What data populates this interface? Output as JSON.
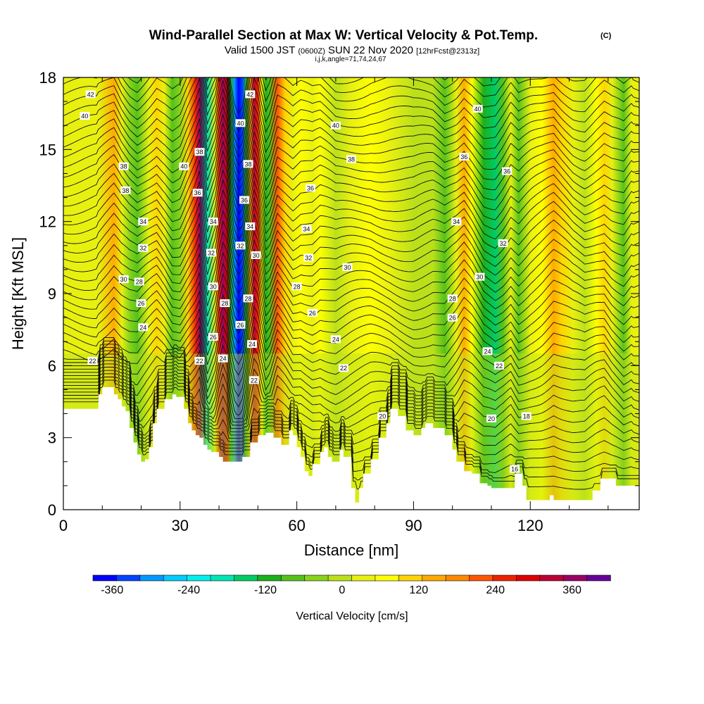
{
  "title": {
    "main": "Wind-Parallel Section at Max W: Vertical Velocity & Pot.Temp.",
    "copyright": "(C)",
    "valid_a": "Valid 1500 JST",
    "valid_z": "(0600Z)",
    "valid_b": "SUN 22 Nov 2020",
    "fcst": "[12hrFcst@2313z]",
    "ijk": "i,j,k,angle=71,74,24,67"
  },
  "chart_data": {
    "type": "heatmap",
    "xlabel": "Distance [nm]",
    "ylabel": "Height [Kft MSL]",
    "xlim": [
      0,
      148
    ],
    "ylim": [
      0,
      18
    ],
    "x_ticks": [
      0,
      30,
      60,
      90,
      120
    ],
    "y_ticks": [
      0,
      3,
      6,
      9,
      12,
      15,
      18
    ],
    "terrain_top_kft": [
      [
        0,
        4.2
      ],
      [
        7,
        4.2
      ],
      [
        9,
        4.8
      ],
      [
        10,
        5.1
      ],
      [
        12,
        5.1
      ],
      [
        13,
        4.8
      ],
      [
        14,
        4.6
      ],
      [
        15,
        4.3
      ],
      [
        16,
        4.1
      ],
      [
        17,
        3.4
      ],
      [
        18,
        2.8
      ],
      [
        19,
        2.3
      ],
      [
        20,
        2.0
      ],
      [
        21,
        2.1
      ],
      [
        22,
        2.6
      ],
      [
        23,
        3.6
      ],
      [
        24,
        4.2
      ],
      [
        26,
        4.6
      ],
      [
        28,
        4.8
      ],
      [
        29,
        4.7
      ],
      [
        31,
        4.2
      ],
      [
        32,
        3.6
      ],
      [
        33,
        3.3
      ],
      [
        34,
        3.1
      ],
      [
        35,
        3.0
      ],
      [
        36,
        2.7
      ],
      [
        37,
        2.5
      ],
      [
        38,
        2.4
      ],
      [
        40,
        2.2
      ],
      [
        41,
        2.0
      ],
      [
        45,
        2.0
      ],
      [
        46,
        2.2
      ],
      [
        48,
        2.8
      ],
      [
        50,
        3.1
      ],
      [
        52,
        3.2
      ],
      [
        54,
        3.0
      ],
      [
        56,
        2.7
      ],
      [
        58,
        3.3
      ],
      [
        59,
        3.1
      ],
      [
        60,
        2.6
      ],
      [
        61,
        2.2
      ],
      [
        62,
        1.6
      ],
      [
        63,
        1.4
      ],
      [
        64,
        1.9
      ],
      [
        66,
        2.4
      ],
      [
        67,
        2.6
      ],
      [
        68,
        2.2
      ],
      [
        69,
        2.0
      ],
      [
        71,
        2.5
      ],
      [
        72,
        2.2
      ],
      [
        74,
        0.9
      ],
      [
        75,
        0.3
      ],
      [
        76,
        0.9
      ],
      [
        77,
        1.5
      ],
      [
        79,
        2.1
      ],
      [
        81,
        3.0
      ],
      [
        83,
        3.6
      ],
      [
        84,
        4.2
      ],
      [
        86,
        3.9
      ],
      [
        88,
        3.3
      ],
      [
        90,
        3.1
      ],
      [
        92,
        3.4
      ],
      [
        93,
        3.6
      ],
      [
        95,
        3.4
      ],
      [
        98,
        3.1
      ],
      [
        100,
        2.5
      ],
      [
        101,
        2.0
      ],
      [
        103,
        1.6
      ],
      [
        105,
        1.5
      ],
      [
        107,
        1.1
      ],
      [
        109,
        1.0
      ],
      [
        110,
        0.9
      ],
      [
        113,
        0.9
      ],
      [
        116,
        1.5
      ],
      [
        118,
        1.0
      ],
      [
        119,
        0.4
      ],
      [
        124,
        0.4
      ],
      [
        125,
        0.6
      ],
      [
        126,
        0.4
      ],
      [
        133,
        0.4
      ],
      [
        136,
        0.8
      ],
      [
        138,
        1.3
      ],
      [
        141,
        1.3
      ],
      [
        142,
        1.0
      ],
      [
        148,
        1.0
      ]
    ],
    "velocity_bands_x_nm_cm_s": [
      [
        9,
        40
      ],
      [
        13,
        160
      ],
      [
        15,
        40
      ],
      [
        17,
        -40
      ],
      [
        19,
        -80
      ],
      [
        22,
        40
      ],
      [
        24,
        120
      ],
      [
        26,
        40
      ],
      [
        28,
        -60
      ],
      [
        30,
        -40
      ],
      [
        32,
        120
      ],
      [
        34,
        260
      ],
      [
        35,
        360
      ],
      [
        37,
        -180
      ],
      [
        39,
        40
      ],
      [
        40,
        240
      ],
      [
        41,
        380
      ],
      [
        42,
        280
      ],
      [
        43,
        -100
      ],
      [
        44,
        -300
      ],
      [
        45,
        -380
      ],
      [
        46,
        -320
      ],
      [
        47,
        -120
      ],
      [
        48,
        160
      ],
      [
        49,
        340
      ],
      [
        50,
        260
      ],
      [
        51,
        60
      ],
      [
        52,
        -120
      ],
      [
        53,
        -60
      ],
      [
        55,
        200
      ],
      [
        57,
        120
      ],
      [
        59,
        20
      ],
      [
        61,
        60
      ],
      [
        64,
        20
      ],
      [
        66,
        60
      ],
      [
        70,
        -20
      ],
      [
        74,
        20
      ],
      [
        79,
        60
      ],
      [
        84,
        40
      ],
      [
        90,
        -20
      ],
      [
        95,
        0
      ],
      [
        98,
        -60
      ],
      [
        101,
        40
      ],
      [
        103,
        140
      ],
      [
        105,
        60
      ],
      [
        108,
        -100
      ],
      [
        111,
        -140
      ],
      [
        113,
        -60
      ],
      [
        115,
        40
      ],
      [
        117,
        -60
      ],
      [
        120,
        20
      ],
      [
        123,
        80
      ],
      [
        126,
        160
      ],
      [
        128,
        100
      ],
      [
        131,
        20
      ],
      [
        134,
        -20
      ],
      [
        137,
        60
      ],
      [
        139,
        100
      ],
      [
        141,
        20
      ],
      [
        144,
        -60
      ],
      [
        146,
        20
      ]
    ],
    "theta_contour_labels": [
      {
        "value": "42",
        "x": 7,
        "y": 17.3
      },
      {
        "value": "40",
        "x": 5.5,
        "y": 16.4
      },
      {
        "value": "38",
        "x": 15.5,
        "y": 14.3
      },
      {
        "value": "38",
        "x": 16,
        "y": 13.3
      },
      {
        "value": "34",
        "x": 20.5,
        "y": 12.0
      },
      {
        "value": "32",
        "x": 20.5,
        "y": 10.9
      },
      {
        "value": "30",
        "x": 15.5,
        "y": 9.6
      },
      {
        "value": "28",
        "x": 19.5,
        "y": 9.5
      },
      {
        "value": "26",
        "x": 20,
        "y": 8.6
      },
      {
        "value": "24",
        "x": 20.5,
        "y": 7.6
      },
      {
        "value": "22",
        "x": 7.5,
        "y": 6.2
      },
      {
        "value": "40",
        "x": 31,
        "y": 14.3
      },
      {
        "value": "38",
        "x": 35,
        "y": 14.9
      },
      {
        "value": "36",
        "x": 34.5,
        "y": 13.2
      },
      {
        "value": "34",
        "x": 38.5,
        "y": 12.0
      },
      {
        "value": "32",
        "x": 38,
        "y": 10.7
      },
      {
        "value": "30",
        "x": 38.5,
        "y": 9.3
      },
      {
        "value": "28",
        "x": 41.5,
        "y": 8.6
      },
      {
        "value": "26",
        "x": 38.5,
        "y": 7.2
      },
      {
        "value": "22",
        "x": 35,
        "y": 6.2
      },
      {
        "value": "24",
        "x": 41,
        "y": 6.3
      },
      {
        "value": "42",
        "x": 48,
        "y": 17.3
      },
      {
        "value": "40",
        "x": 45.5,
        "y": 16.1
      },
      {
        "value": "38",
        "x": 47.5,
        "y": 14.4
      },
      {
        "value": "36",
        "x": 46.5,
        "y": 12.9
      },
      {
        "value": "34",
        "x": 48,
        "y": 11.8
      },
      {
        "value": "32",
        "x": 45.5,
        "y": 11.0
      },
      {
        "value": "30",
        "x": 49.5,
        "y": 10.6
      },
      {
        "value": "28",
        "x": 47.5,
        "y": 8.8
      },
      {
        "value": "26",
        "x": 45.5,
        "y": 7.7
      },
      {
        "value": "24",
        "x": 48.5,
        "y": 6.9
      },
      {
        "value": "22",
        "x": 49,
        "y": 5.4
      },
      {
        "value": "36",
        "x": 63.5,
        "y": 13.4
      },
      {
        "value": "34",
        "x": 62.5,
        "y": 11.7
      },
      {
        "value": "32",
        "x": 63,
        "y": 10.5
      },
      {
        "value": "30",
        "x": 73,
        "y": 10.1
      },
      {
        "value": "28",
        "x": 60,
        "y": 9.3
      },
      {
        "value": "26",
        "x": 64,
        "y": 8.2
      },
      {
        "value": "24",
        "x": 70,
        "y": 7.1
      },
      {
        "value": "22",
        "x": 72,
        "y": 5.9
      },
      {
        "value": "20",
        "x": 82,
        "y": 3.9
      },
      {
        "value": "40",
        "x": 70,
        "y": 16.0
      },
      {
        "value": "38",
        "x": 74,
        "y": 14.6
      },
      {
        "value": "36",
        "x": 103,
        "y": 14.7
      },
      {
        "value": "34",
        "x": 101,
        "y": 12.0
      },
      {
        "value": "32",
        "x": 113,
        "y": 11.1
      },
      {
        "value": "30",
        "x": 107,
        "y": 9.7
      },
      {
        "value": "28",
        "x": 100,
        "y": 8.8
      },
      {
        "value": "26",
        "x": 100,
        "y": 8.0
      },
      {
        "value": "24",
        "x": 109,
        "y": 6.6
      },
      {
        "value": "22",
        "x": 112,
        "y": 6.0
      },
      {
        "value": "20",
        "x": 110,
        "y": 3.8
      },
      {
        "value": "18",
        "x": 119,
        "y": 3.9
      },
      {
        "value": "16",
        "x": 116,
        "y": 1.7
      },
      {
        "value": "40",
        "x": 106.5,
        "y": 16.7
      },
      {
        "value": "36",
        "x": 114,
        "y": 14.1
      }
    ]
  },
  "colorbar": {
    "label": "Vertical Velocity [cm/s]",
    "min": -390,
    "max": 420,
    "colors": [
      "#0000ff",
      "#0044ff",
      "#0099ff",
      "#00ccff",
      "#00f0f0",
      "#00e6b4",
      "#00cc66",
      "#1cb01c",
      "#55c21a",
      "#88d41a",
      "#bbe01a",
      "#e8f010",
      "#ffff00",
      "#ffd400",
      "#ffaa00",
      "#ff8800",
      "#ff5500",
      "#ee2200",
      "#dd0000",
      "#bb0033",
      "#990066",
      "#660099"
    ],
    "tick_values": [
      -360,
      -240,
      -120,
      0,
      120,
      240,
      360
    ],
    "tick_labels": [
      "-360",
      "-240",
      "-120",
      "0",
      "120",
      "240",
      "360"
    ]
  }
}
